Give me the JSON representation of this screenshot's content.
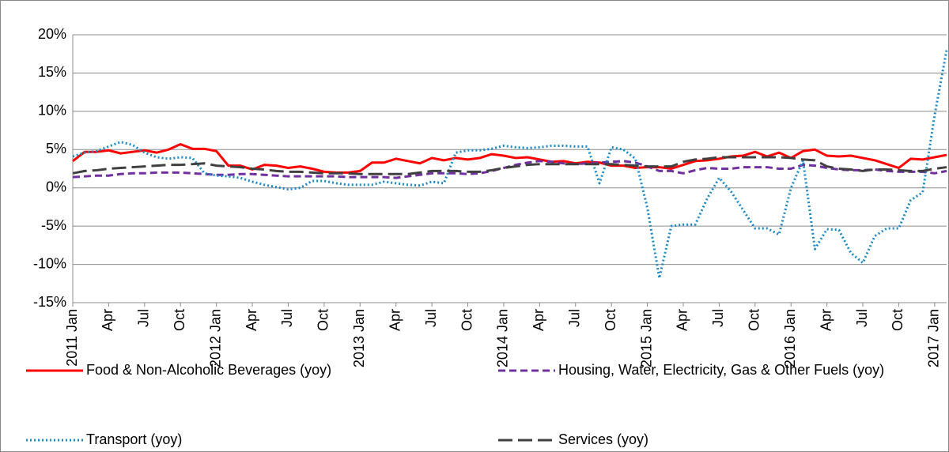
{
  "chart_data": {
    "type": "line",
    "categories": [
      "2011 Jan",
      null,
      null,
      "Apr",
      null,
      null,
      "Jul",
      null,
      null,
      "Oct",
      null,
      null,
      "2012 Jan",
      null,
      null,
      "Apr",
      null,
      null,
      "Jul",
      null,
      null,
      "Oct",
      null,
      null,
      "2013 Jan",
      null,
      null,
      "Apr",
      null,
      null,
      "Jul",
      null,
      null,
      "Oct",
      null,
      null,
      "2014 Jan",
      null,
      null,
      "Apr",
      null,
      null,
      "Jul",
      null,
      null,
      "Oct",
      null,
      null,
      "2015 Jan",
      null,
      null,
      "Apr",
      null,
      null,
      "Jul",
      null,
      null,
      "Oct",
      null,
      null,
      "2016 Jan",
      null,
      null,
      "Apr",
      null,
      null,
      "Jul",
      null,
      null,
      "Oct",
      null,
      null,
      "2017 Jan",
      null
    ],
    "series": [
      {
        "name": "Food & Non-Alcoholic Beverages (yoy)",
        "color": "#ff0000",
        "dash": "solid",
        "values": [
          3.5,
          4.7,
          4.7,
          4.9,
          4.5,
          4.7,
          4.9,
          4.6,
          5.0,
          5.7,
          5.1,
          5.1,
          4.8,
          2.9,
          2.9,
          2.4,
          3.0,
          2.9,
          2.6,
          2.8,
          2.5,
          2.1,
          2.0,
          2.0,
          2.2,
          3.3,
          3.3,
          3.8,
          3.5,
          3.2,
          3.9,
          3.6,
          3.9,
          3.7,
          3.9,
          4.4,
          4.2,
          3.9,
          4.0,
          3.7,
          3.4,
          3.5,
          3.2,
          3.4,
          3.3,
          2.9,
          2.9,
          2.6,
          2.7,
          2.7,
          2.5,
          3.0,
          3.5,
          3.6,
          3.8,
          4.1,
          4.2,
          4.7,
          4.1,
          4.6,
          3.9,
          4.8,
          5.0,
          4.2,
          4.1,
          4.2,
          3.9,
          3.6,
          3.1,
          2.6,
          3.8,
          3.7,
          4.0,
          4.3
        ]
      },
      {
        "name": "Housing, Water, Electricity, Gas & Other Fuels (yoy)",
        "color": "#7030a0",
        "dash": "dashed",
        "values": [
          1.4,
          1.5,
          1.6,
          1.6,
          1.8,
          1.9,
          1.9,
          2.0,
          2.0,
          2.0,
          1.9,
          1.8,
          1.7,
          1.7,
          1.8,
          1.8,
          1.7,
          1.6,
          1.5,
          1.5,
          1.5,
          1.5,
          1.5,
          1.4,
          1.4,
          1.4,
          1.4,
          1.3,
          1.5,
          1.7,
          1.9,
          1.9,
          1.9,
          1.8,
          1.9,
          2.2,
          2.6,
          3.0,
          3.3,
          3.5,
          3.4,
          3.2,
          3.1,
          3.2,
          3.3,
          3.4,
          3.5,
          3.3,
          2.8,
          2.2,
          2.2,
          1.9,
          2.3,
          2.6,
          2.5,
          2.5,
          2.7,
          2.7,
          2.7,
          2.5,
          2.5,
          3.0,
          2.9,
          2.6,
          2.4,
          2.3,
          2.3,
          2.4,
          2.2,
          2.1,
          2.1,
          2.1,
          1.9,
          2.2
        ]
      },
      {
        "name": "Transport (yoy)",
        "color": "#1a8ac6",
        "dash": "dotted",
        "values": [
          4.1,
          4.6,
          4.8,
          5.4,
          6.0,
          5.6,
          4.6,
          4.0,
          3.8,
          4.0,
          3.9,
          1.9,
          1.6,
          1.5,
          1.3,
          0.8,
          0.4,
          0.1,
          -0.2,
          0.0,
          0.9,
          0.9,
          0.6,
          0.4,
          0.4,
          0.4,
          0.8,
          0.6,
          0.4,
          0.3,
          0.8,
          0.6,
          4.6,
          4.9,
          4.9,
          5.1,
          5.5,
          5.3,
          5.2,
          5.3,
          5.5,
          5.5,
          5.4,
          5.4,
          0.6,
          5.3,
          5.0,
          3.8,
          -2.6,
          -11.8,
          -5.0,
          -4.8,
          -4.8,
          -1.4,
          1.3,
          -0.5,
          -2.9,
          -5.3,
          -5.3,
          -6.1,
          0.0,
          3.6,
          -8.0,
          -5.4,
          -5.5,
          -8.5,
          -9.8,
          -6.3,
          -5.3,
          -5.3,
          -1.6,
          -0.6,
          9.5,
          18.0
        ]
      },
      {
        "name": "Services (yoy)",
        "color": "#404040",
        "dash": "longdash",
        "values": [
          1.9,
          2.2,
          2.3,
          2.5,
          2.6,
          2.7,
          2.8,
          2.9,
          3.0,
          3.0,
          3.1,
          3.2,
          2.9,
          2.8,
          2.7,
          2.5,
          2.4,
          2.2,
          2.1,
          2.1,
          2.0,
          1.9,
          1.9,
          1.9,
          1.8,
          1.8,
          1.8,
          1.8,
          1.8,
          2.0,
          2.2,
          2.2,
          2.2,
          2.1,
          2.1,
          2.3,
          2.6,
          2.8,
          3.0,
          3.1,
          3.1,
          3.1,
          3.1,
          3.1,
          3.1,
          3.1,
          3.0,
          2.9,
          2.8,
          2.8,
          2.8,
          3.4,
          3.7,
          3.8,
          4.0,
          4.0,
          4.0,
          4.0,
          4.0,
          4.0,
          3.9,
          3.7,
          3.6,
          2.8,
          2.5,
          2.4,
          2.2,
          2.4,
          2.4,
          2.3,
          2.2,
          2.2,
          2.5,
          2.7
        ]
      }
    ],
    "ylim": [
      -15,
      20
    ],
    "yticks": [
      {
        "value": -15,
        "label": "-15%"
      },
      {
        "value": -10,
        "label": "-10%"
      },
      {
        "value": -5,
        "label": "-5%"
      },
      {
        "value": 0,
        "label": "0%"
      },
      {
        "value": 5,
        "label": "5%"
      },
      {
        "value": 10,
        "label": "10%"
      },
      {
        "value": 15,
        "label": "15%"
      },
      {
        "value": 20,
        "label": "20%"
      }
    ],
    "grid": true,
    "legend": "bottom"
  }
}
